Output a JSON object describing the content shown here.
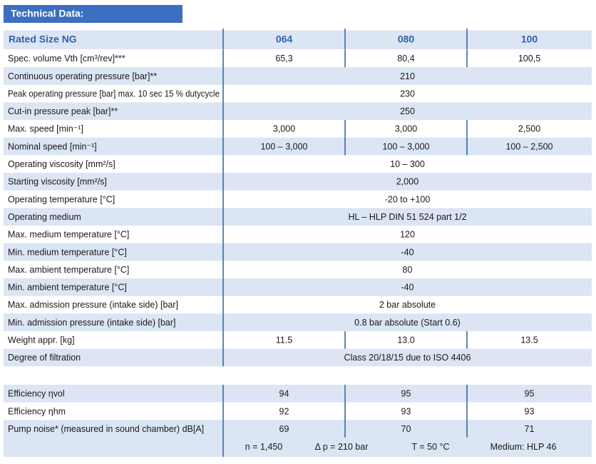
{
  "title": "Technical Data:",
  "table": {
    "header": [
      "Rated Size NG",
      "064",
      "080",
      "100"
    ],
    "rows": [
      {
        "label": "Spec. volume Vth [cm³/rev]***",
        "values": [
          "65,3",
          "80,4",
          "100,5"
        ]
      },
      {
        "label": "Continuous operating pressure [bar]**",
        "values": [
          "210"
        ]
      },
      {
        "label": "Peak operating pressure [bar] max. 10 sec 15 % dutycycle",
        "values": [
          "230"
        ]
      },
      {
        "label": "Cut-in pressure peak [bar]**",
        "values": [
          "250"
        ]
      },
      {
        "label": "Max. speed [min⁻¹]",
        "values": [
          "3,000",
          "3,000",
          "2,500"
        ]
      },
      {
        "label": "Nominal speed [min⁻¹]",
        "values": [
          "100 – 3,000",
          "100 – 3,000",
          "100 – 2,500"
        ]
      },
      {
        "label": "Operating viscosity [mm²/s]",
        "values": [
          "10 – 300"
        ]
      },
      {
        "label": "Starting viscosity [mm²/s]",
        "values": [
          "2,000"
        ]
      },
      {
        "label": "Operating temperature [°C]",
        "values": [
          "-20 to +100"
        ]
      },
      {
        "label": "Operating medium",
        "values": [
          "HL – HLP DIN 51 524 part 1/2"
        ]
      },
      {
        "label": "Max. medium temperature [°C]",
        "values": [
          "120"
        ]
      },
      {
        "label": "Min. medium temperature [°C]",
        "values": [
          "-40"
        ]
      },
      {
        "label": "Max. ambient temperature [°C]",
        "values": [
          "80"
        ]
      },
      {
        "label": "Min. ambient temperature [°C]",
        "values": [
          "-40"
        ]
      },
      {
        "label": "Max. admission pressure (intake side) [bar]",
        "values": [
          "2 bar absolute"
        ]
      },
      {
        "label": "Min. admission pressure (intake side) [bar]",
        "values": [
          "0.8 bar absolute (Start 0.6)"
        ]
      },
      {
        "label": "Weight appr. [kg]",
        "values": [
          "11.5",
          "13.0",
          "13.5"
        ]
      },
      {
        "label": "Degree of filtration",
        "values": [
          "Class 20/18/15 due to ISO 4406"
        ]
      }
    ]
  },
  "efficiency": {
    "rows": [
      {
        "label": "Efficiency ηvol",
        "values": [
          "94",
          "95",
          "95"
        ]
      },
      {
        "label": "Efficiency ηhm",
        "values": [
          "92",
          "93",
          "93"
        ]
      },
      {
        "label": "Pump noise* (measured in sound chamber)  dB[A]",
        "values": [
          "69",
          "70",
          "71"
        ]
      }
    ],
    "conditions": [
      "n = 1,450",
      "Δ p = 210 bar",
      "T = 50 °C",
      "Medium: HLP 46"
    ]
  }
}
